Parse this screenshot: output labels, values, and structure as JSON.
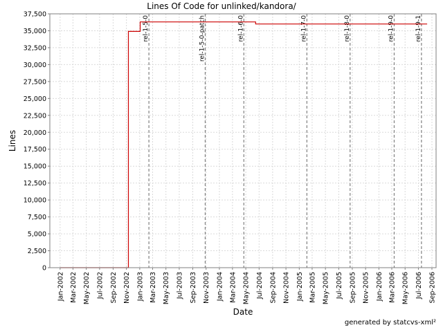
{
  "chart_data": {
    "type": "line",
    "title": "Lines Of Code for unlinked/kandora/",
    "xlabel": "Date",
    "ylabel": "Lines",
    "ylim": [
      0,
      37500
    ],
    "yticks": [
      0,
      2500,
      5000,
      7500,
      10000,
      12500,
      15000,
      17500,
      20000,
      22500,
      25000,
      27500,
      30000,
      32500,
      35000,
      37500
    ],
    "xlim": [
      "2001-11-15",
      "2006-09-20"
    ],
    "xticks": [
      "Jan-2002",
      "Mar-2002",
      "May-2002",
      "Jul-2002",
      "Sep-2002",
      "Nov-2002",
      "Jan-2003",
      "Mar-2003",
      "May-2003",
      "Jul-2003",
      "Sep-2003",
      "Nov-2003",
      "Jan-2004",
      "Mar-2004",
      "May-2004",
      "Jul-2004",
      "Sep-2004",
      "Nov-2004",
      "Jan-2005",
      "Mar-2005",
      "May-2005",
      "Jul-2005",
      "Sep-2005",
      "Nov-2005",
      "Jan-2006",
      "Mar-2006",
      "May-2006",
      "Jul-2006",
      "Sep-2006"
    ],
    "grid": true,
    "line_color": "#cc0000",
    "series": [
      {
        "step": true,
        "points": [
          {
            "x": "2002-01-01",
            "y": 0
          },
          {
            "x": "2002-11-10",
            "y": 0
          },
          {
            "x": "2002-11-10",
            "y": 34900
          },
          {
            "x": "2003-01-03",
            "y": 34900
          },
          {
            "x": "2003-01-03",
            "y": 36300
          },
          {
            "x": "2004-06-15",
            "y": 36300
          },
          {
            "x": "2004-06-15",
            "y": 36000
          },
          {
            "x": "2006-08-10",
            "y": 36000
          }
        ]
      }
    ],
    "markers": [
      {
        "label": "rel-1-5-0",
        "x": "2003-02-12"
      },
      {
        "label": "rel-1-5-0-patch",
        "x": "2003-10-28"
      },
      {
        "label": "rel-1-6-0",
        "x": "2004-04-22"
      },
      {
        "label": "rel-1-7-0",
        "x": "2005-02-05"
      },
      {
        "label": "rel-1-8-0",
        "x": "2005-08-22"
      },
      {
        "label": "rel-1-9-0",
        "x": "2006-03-12"
      },
      {
        "label": "rel-1-9-1",
        "x": "2006-07-15"
      }
    ]
  },
  "footer": "generated by statcvs-xml²"
}
